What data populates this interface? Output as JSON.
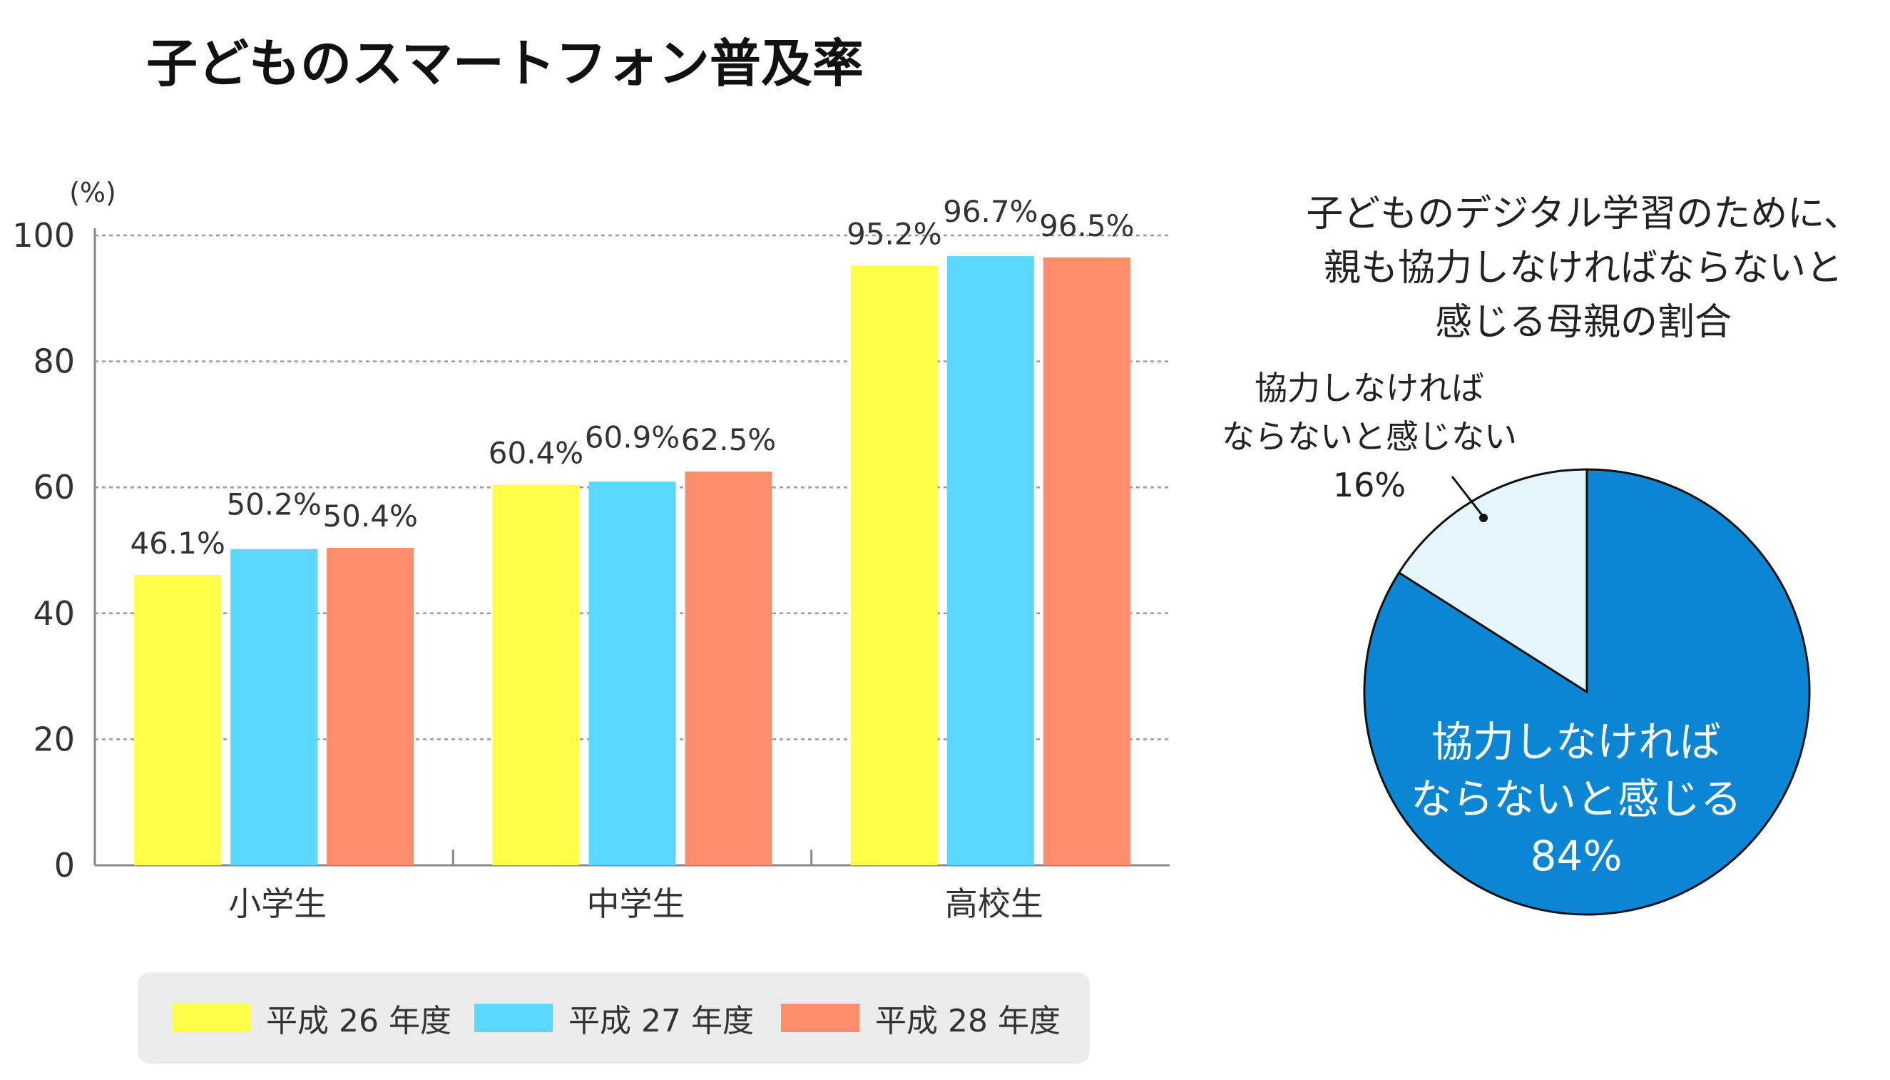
{
  "title": "子どものスマートフォン普及率",
  "colors": {
    "series_0": "#ffff4a",
    "series_1": "#5ad8ff",
    "series_2": "#ff8c6b",
    "pie_main": "#0a86d4",
    "pie_minor": "#e6f6fd"
  },
  "chart_data": [
    {
      "type": "bar",
      "title": "子どものスマートフォン普及率",
      "unit": "(%)",
      "categories": [
        "小学生",
        "中学生",
        "高校生"
      ],
      "series": [
        {
          "name": "平成 26 年度",
          "values": [
            46.1,
            60.4,
            95.2
          ],
          "labels": [
            "46.1%",
            "60.4%",
            "95.2%"
          ]
        },
        {
          "name": "平成 27 年度",
          "values": [
            50.2,
            60.9,
            96.7
          ],
          "labels": [
            "50.2%",
            "60.9%",
            "96.7%"
          ]
        },
        {
          "name": "平成 28 年度",
          "values": [
            50.4,
            62.5,
            96.5
          ],
          "labels": [
            "50.4%",
            "62.5%",
            "96.5%"
          ]
        }
      ],
      "ylim": [
        0,
        100
      ],
      "yticks": [
        0,
        20,
        40,
        60,
        80,
        100
      ],
      "grid": true,
      "legend": "bottom"
    },
    {
      "type": "pie",
      "title_lines": [
        "子どものデジタル学習のために、",
        "親も協力しなければならないと",
        "感じる母親の割合"
      ],
      "slices": [
        {
          "label_lines": [
            "協力しなければ",
            "ならないと感じる"
          ],
          "value": 84,
          "value_label": "84%"
        },
        {
          "label_lines": [
            "協力しなければ",
            "ならないと感じない"
          ],
          "value": 16,
          "value_label": "16%"
        }
      ]
    }
  ]
}
